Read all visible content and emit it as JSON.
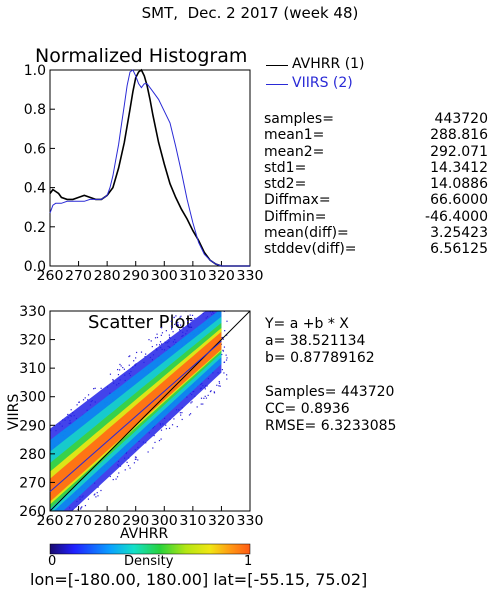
{
  "header": {
    "title": "SMT,  Dec. 2 2017 (week 48)"
  },
  "chart_data": [
    {
      "type": "line",
      "title": "Normalized Histogram",
      "xlim": [
        260,
        330
      ],
      "ylim": [
        0.0,
        1.0
      ],
      "xticks": [
        "260",
        "270",
        "280",
        "290",
        "300",
        "310",
        "320",
        "330"
      ],
      "yticks": [
        "0.0",
        "0.2",
        "0.4",
        "0.6",
        "0.8",
        "1.0"
      ],
      "series": [
        {
          "name": "AVHRR (1)",
          "color": "#000000",
          "x": [
            260,
            261,
            262,
            263,
            264,
            266,
            268,
            270,
            272,
            274,
            276,
            278,
            280,
            282,
            284,
            286,
            288,
            289,
            290,
            291,
            292,
            293,
            294,
            295,
            296,
            298,
            300,
            302,
            304,
            306,
            308,
            310,
            312,
            314,
            316,
            318,
            320,
            322,
            324,
            326,
            328,
            330
          ],
          "y": [
            0.37,
            0.39,
            0.38,
            0.37,
            0.35,
            0.34,
            0.34,
            0.35,
            0.36,
            0.35,
            0.34,
            0.34,
            0.36,
            0.4,
            0.5,
            0.63,
            0.8,
            0.89,
            0.96,
            0.99,
            1.0,
            0.97,
            0.92,
            0.85,
            0.77,
            0.63,
            0.52,
            0.42,
            0.35,
            0.29,
            0.24,
            0.18,
            0.13,
            0.07,
            0.03,
            0.01,
            0.0,
            0.0,
            0.0,
            0.0,
            0.0,
            0.0
          ]
        },
        {
          "name": "VIIRS (2)",
          "color": "#2a2ad6",
          "x": [
            260,
            261,
            262,
            264,
            266,
            268,
            270,
            272,
            274,
            276,
            278,
            280,
            281,
            282,
            283,
            284,
            285,
            286,
            287,
            288,
            289,
            290,
            291,
            292,
            293,
            294,
            296,
            298,
            300,
            302,
            304,
            306,
            308,
            310,
            312,
            314,
            316,
            318,
            320,
            322,
            324,
            326,
            330
          ],
          "y": [
            0.27,
            0.31,
            0.32,
            0.32,
            0.33,
            0.33,
            0.33,
            0.33,
            0.34,
            0.34,
            0.34,
            0.36,
            0.4,
            0.46,
            0.54,
            0.62,
            0.72,
            0.82,
            0.92,
            0.99,
            1.0,
            0.97,
            0.93,
            0.91,
            0.93,
            0.93,
            0.89,
            0.85,
            0.79,
            0.73,
            0.61,
            0.48,
            0.34,
            0.22,
            0.12,
            0.06,
            0.03,
            0.01,
            0.0,
            0.0,
            0.0,
            0.0,
            0.0
          ]
        }
      ]
    },
    {
      "type": "heatmap",
      "title": "Scatter Plot",
      "xlabel": "AVHRR",
      "ylabel": "VIIRS",
      "xlim": [
        260,
        330
      ],
      "ylim": [
        260,
        330
      ],
      "xticks": [
        "260",
        "270",
        "280",
        "290",
        "300",
        "310",
        "320",
        "330"
      ],
      "yticks": [
        "260",
        "270",
        "280",
        "290",
        "300",
        "310",
        "320",
        "330"
      ],
      "fit_line": {
        "a": 38.521134,
        "b": 0.87789162
      },
      "colorbar": {
        "label": "Density",
        "min_label": "0",
        "max_label": "1"
      }
    }
  ],
  "stats": [
    {
      "label": "samples=",
      "value": "443720"
    },
    {
      "label": "mean1=",
      "value": "288.816"
    },
    {
      "label": "mean2=",
      "value": "292.071"
    },
    {
      "label": "std1=",
      "value": "14.3412"
    },
    {
      "label": "std2=",
      "value": "14.0886"
    },
    {
      "label": "Diffmax=",
      "value": "66.6000"
    },
    {
      "label": "Diffmin=",
      "value": "-46.4000"
    },
    {
      "label": "mean(diff)=",
      "value": "3.25423"
    },
    {
      "label": "stddev(diff)=",
      "value": "6.56125"
    }
  ],
  "fit": {
    "equation": "Y= a +b * X",
    "a_line": "a= 38.521134",
    "b_line": "b= 0.87789162",
    "samples_line": "Samples= 443720",
    "cc_line": "CC=  0.8936",
    "rmse_line": "RMSE= 6.3233085"
  },
  "footer": {
    "text": "lon=[-180.00, 180.00] lat=[-55.15, 75.02]"
  }
}
